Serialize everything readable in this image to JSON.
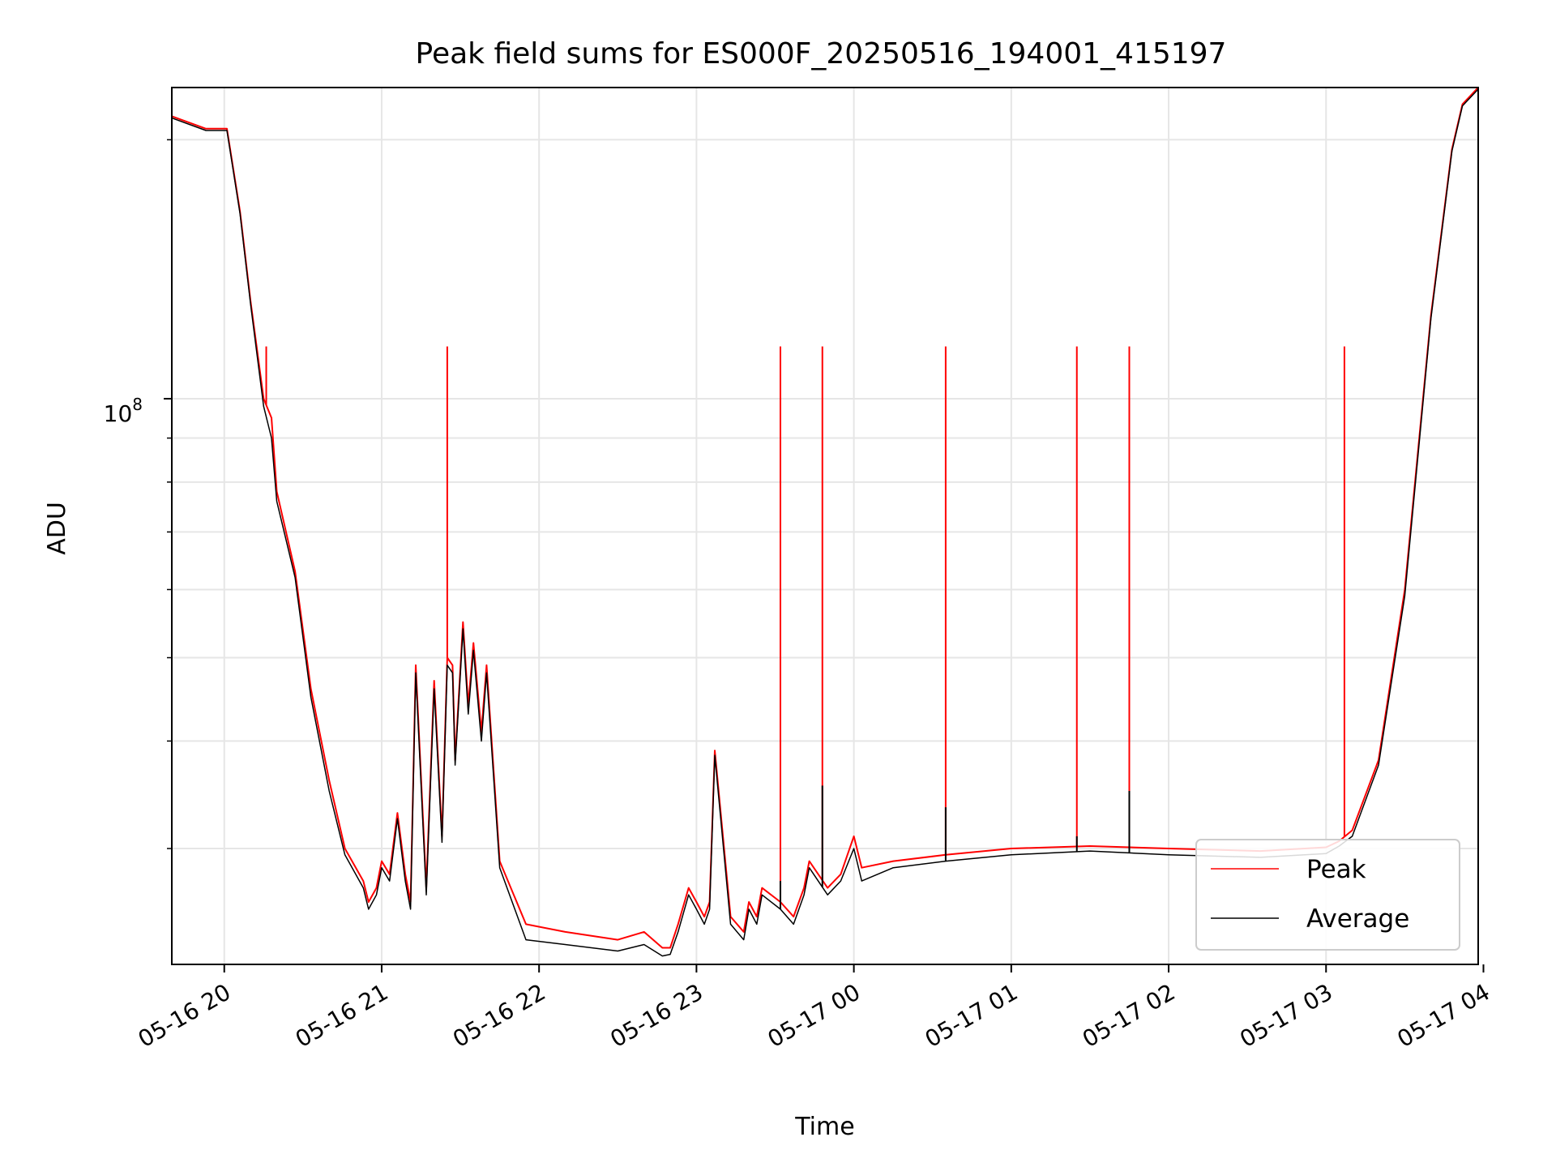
{
  "chart_data": {
    "type": "line",
    "title": "Peak field sums for ES000F_20250516_194001_415197",
    "xlabel": "Time",
    "ylabel": "ADU",
    "x_scale": "time",
    "y_scale": "log",
    "xlim": [
      "05-16 19:40",
      "05-17 03:58"
    ],
    "ylim": [
      22000000,
      230000000
    ],
    "grid": true,
    "legend_position": "lower-right",
    "x_ticks": [
      "05-16 20",
      "05-16 21",
      "05-16 22",
      "05-16 23",
      "05-17 00",
      "05-17 01",
      "05-17 02",
      "05-17 03",
      "05-17 04"
    ],
    "y_tick_label": {
      "base": "10",
      "exponent": "8"
    },
    "series": [
      {
        "name": "Peak",
        "color": "#ff0000",
        "x": [
          "05-16 19:40",
          "05-16 19:53",
          "05-16 20:01",
          "05-16 20:06",
          "05-16 20:10",
          "05-16 20:15",
          "05-16 20:18",
          "05-16 20:20",
          "05-16 20:27",
          "05-16 20:33",
          "05-16 20:40",
          "05-16 20:46",
          "05-16 20:53",
          "05-16 20:55",
          "05-16 20:58",
          "05-16 21:00",
          "05-16 21:03",
          "05-16 21:06",
          "05-16 21:09",
          "05-16 21:11",
          "05-16 21:13",
          "05-16 21:17",
          "05-16 21:20",
          "05-16 21:23",
          "05-16 21:25",
          "05-16 21:27",
          "05-16 21:28",
          "05-16 21:31",
          "05-16 21:33",
          "05-16 21:35",
          "05-16 21:38",
          "05-16 21:40",
          "05-16 21:45",
          "05-16 21:55",
          "05-16 22:10",
          "05-16 22:30",
          "05-16 22:40",
          "05-16 22:47",
          "05-16 22:50",
          "05-16 22:53",
          "05-16 22:57",
          "05-16 23:00",
          "05-16 23:03",
          "05-16 23:05",
          "05-16 23:07",
          "05-16 23:13",
          "05-16 23:18",
          "05-16 23:20",
          "05-16 23:23",
          "05-16 23:25",
          "05-16 23:32",
          "05-16 23:37",
          "05-16 23:41",
          "05-16 23:43",
          "05-16 23:50",
          "05-16 23:55",
          "05-17 00:00",
          "05-17 00:03",
          "05-17 00:15",
          "05-17 00:35",
          "05-17 01:00",
          "05-17 01:30",
          "05-17 02:00",
          "05-17 02:35",
          "05-17 03:00",
          "05-17 03:05",
          "05-17 03:10",
          "05-17 03:20",
          "05-17 03:30",
          "05-17 03:40",
          "05-17 03:48",
          "05-17 03:52",
          "05-17 03:58"
        ],
        "values": [
          213000000,
          206000000,
          206000000,
          165000000,
          130000000,
          100000000,
          95000000,
          78000000,
          63000000,
          46000000,
          36000000,
          30000000,
          27500000,
          26000000,
          27000000,
          29000000,
          28000000,
          33000000,
          28000000,
          26000000,
          49000000,
          27000000,
          47000000,
          31000000,
          50000000,
          49000000,
          38000000,
          55000000,
          44000000,
          52000000,
          41000000,
          49000000,
          29000000,
          24500000,
          24000000,
          23500000,
          24000000,
          23000000,
          23000000,
          24500000,
          27000000,
          26000000,
          25000000,
          26000000,
          39000000,
          25000000,
          24000000,
          26000000,
          25000000,
          27000000,
          26000000,
          25000000,
          27000000,
          29000000,
          27000000,
          28000000,
          31000000,
          28500000,
          29000000,
          29500000,
          30000000,
          30200000,
          30000000,
          29800000,
          30100000,
          30600000,
          31500000,
          38000000,
          60000000,
          125000000,
          195000000,
          220000000,
          230000000
        ],
        "spikes": [
          {
            "x": "05-16 20:16",
            "peak": 115000000
          },
          {
            "x": "05-16 21:25",
            "peak": 115000000
          },
          {
            "x": "05-16 23:32",
            "peak": 115000000
          },
          {
            "x": "05-16 23:48",
            "peak": 115000000
          },
          {
            "x": "05-17 00:35",
            "peak": 115000000
          },
          {
            "x": "05-17 01:25",
            "peak": 115000000
          },
          {
            "x": "05-17 01:45",
            "peak": 115000000
          },
          {
            "x": "05-17 03:07",
            "peak": 115000000
          }
        ]
      },
      {
        "name": "Average",
        "color": "#000000",
        "x": [
          "05-16 19:40",
          "05-16 19:53",
          "05-16 20:01",
          "05-16 20:06",
          "05-16 20:10",
          "05-16 20:15",
          "05-16 20:18",
          "05-16 20:20",
          "05-16 20:27",
          "05-16 20:33",
          "05-16 20:40",
          "05-16 20:46",
          "05-16 20:53",
          "05-16 20:55",
          "05-16 20:58",
          "05-16 21:00",
          "05-16 21:03",
          "05-16 21:06",
          "05-16 21:09",
          "05-16 21:11",
          "05-16 21:13",
          "05-16 21:17",
          "05-16 21:20",
          "05-16 21:23",
          "05-16 21:25",
          "05-16 21:27",
          "05-16 21:28",
          "05-16 21:31",
          "05-16 21:33",
          "05-16 21:35",
          "05-16 21:38",
          "05-16 21:40",
          "05-16 21:45",
          "05-16 21:55",
          "05-16 22:10",
          "05-16 22:30",
          "05-16 22:40",
          "05-16 22:47",
          "05-16 22:50",
          "05-16 22:53",
          "05-16 22:57",
          "05-16 23:00",
          "05-16 23:03",
          "05-16 23:05",
          "05-16 23:07",
          "05-16 23:13",
          "05-16 23:18",
          "05-16 23:20",
          "05-16 23:23",
          "05-16 23:25",
          "05-16 23:32",
          "05-16 23:37",
          "05-16 23:41",
          "05-16 23:43",
          "05-16 23:50",
          "05-16 23:55",
          "05-17 00:00",
          "05-17 00:03",
          "05-17 00:15",
          "05-17 00:35",
          "05-17 01:00",
          "05-17 01:30",
          "05-17 02:00",
          "05-17 02:35",
          "05-17 03:00",
          "05-17 03:05",
          "05-17 03:10",
          "05-17 03:20",
          "05-17 03:30",
          "05-17 03:40",
          "05-17 03:48",
          "05-17 03:52",
          "05-17 03:58"
        ],
        "values": [
          212000000,
          205000000,
          205000000,
          164000000,
          129000000,
          98000000,
          90000000,
          76000000,
          62000000,
          45000000,
          35000000,
          29500000,
          27000000,
          25500000,
          26500000,
          28500000,
          27500000,
          32500000,
          27500000,
          25500000,
          48000000,
          26500000,
          46000000,
          30500000,
          49000000,
          48000000,
          37500000,
          54000000,
          43000000,
          51000000,
          40000000,
          48000000,
          28500000,
          23500000,
          23200000,
          22800000,
          23200000,
          22500000,
          22600000,
          24000000,
          26500000,
          25500000,
          24500000,
          25500000,
          38500000,
          24500000,
          23500000,
          25500000,
          24500000,
          26500000,
          25500000,
          24500000,
          26500000,
          28500000,
          26500000,
          27500000,
          30000000,
          27500000,
          28500000,
          29000000,
          29500000,
          29800000,
          29500000,
          29300000,
          29600000,
          30200000,
          31000000,
          37500000,
          59000000,
          124000000,
          194000000,
          219000000,
          229000000
        ],
        "spikes": [
          {
            "x": "05-16 23:32",
            "peak": 27500000
          },
          {
            "x": "05-16 23:48",
            "peak": 35500000
          },
          {
            "x": "05-17 00:35",
            "peak": 33500000
          },
          {
            "x": "05-17 01:25",
            "peak": 31000000
          },
          {
            "x": "05-17 01:45",
            "peak": 35000000
          }
        ]
      }
    ]
  }
}
